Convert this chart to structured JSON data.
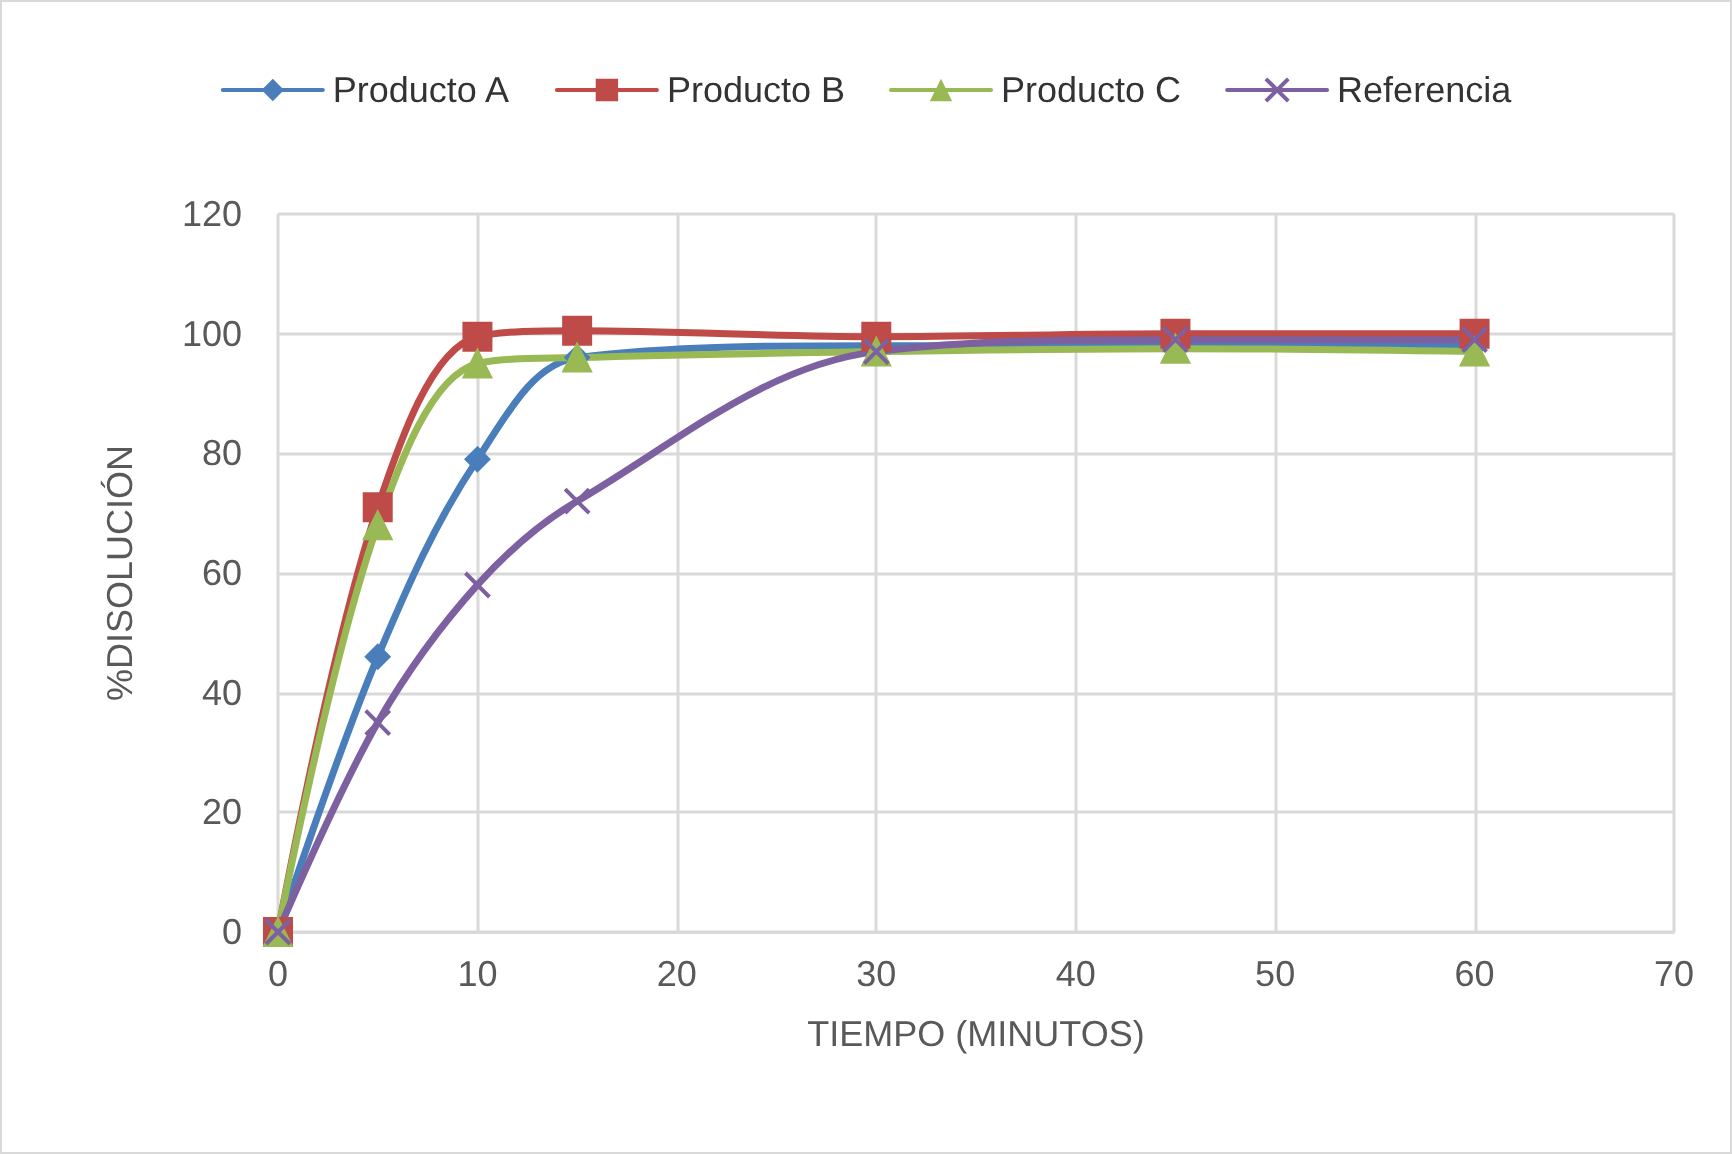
{
  "chart_data": {
    "type": "line",
    "xlabel": "TIEMPO (MINUTOS)",
    "ylabel": "%DISOLUCIÓN",
    "x": [
      0,
      5,
      10,
      15,
      30,
      45,
      60
    ],
    "series": [
      {
        "name": "Producto A",
        "color": "#4a7ebb",
        "marker": "diamond",
        "values": [
          0,
          46,
          79,
          96,
          98,
          98,
          98
        ]
      },
      {
        "name": "Producto B",
        "color": "#be4b48",
        "marker": "square",
        "values": [
          0,
          71,
          99.5,
          100.5,
          99.5,
          100,
          100
        ]
      },
      {
        "name": "Producto C",
        "color": "#98b954",
        "marker": "triangle",
        "values": [
          0,
          68,
          95,
          96,
          97,
          97.5,
          97
        ]
      },
      {
        "name": "Referencia",
        "color": "#7d60a0",
        "marker": "cross",
        "values": [
          0,
          35,
          58,
          72,
          97,
          99,
          99
        ]
      }
    ],
    "xlim": [
      0,
      70
    ],
    "xticks": [
      0,
      10,
      20,
      30,
      40,
      50,
      60,
      70
    ],
    "ylim": [
      0,
      120
    ],
    "yticks": [
      0,
      20,
      40,
      60,
      80,
      100,
      120
    ],
    "grid": true,
    "legend": "top",
    "line_style": "solid"
  }
}
